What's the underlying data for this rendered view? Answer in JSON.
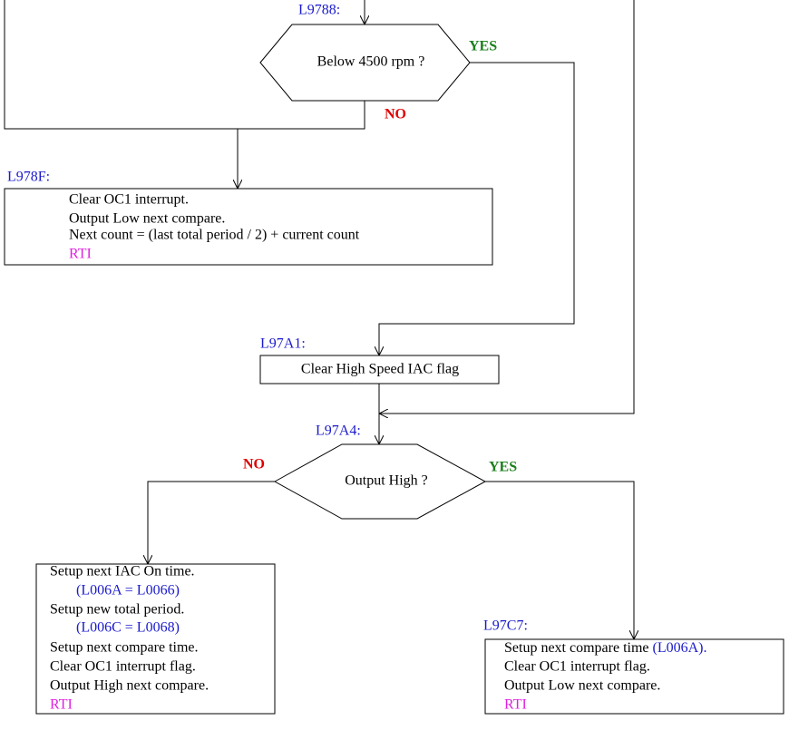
{
  "nodes": [
    {
      "label": "L9788:",
      "text": "Below 4500 rpm ?",
      "yes": "YES",
      "no": "NO"
    },
    {
      "label": "L978F:",
      "lines": [
        "Clear OC1 interrupt.",
        "Output Low next compare.",
        "Next count = (last total period / 2) + current count",
        "RTI"
      ]
    },
    {
      "label": "L97A1:",
      "text": "Clear High Speed IAC flag"
    },
    {
      "label": "L97A4:",
      "text": "Output High ?",
      "yes": "YES",
      "no": "NO"
    },
    {
      "lines": [
        "Setup next IAC On time.",
        "(L006A = L0066)",
        "Setup new total period.",
        "(L006C = L0068)",
        "Setup next compare time.",
        "Clear OC1 interrupt flag.",
        "Output High next compare.",
        "RTI"
      ]
    },
    {
      "label": "L97C7:",
      "lines": [
        "Setup next compare time",
        "Clear OC1 interrupt flag.",
        "Output Low next compare.",
        "RTI"
      ],
      "ref": "(L006A)."
    }
  ]
}
